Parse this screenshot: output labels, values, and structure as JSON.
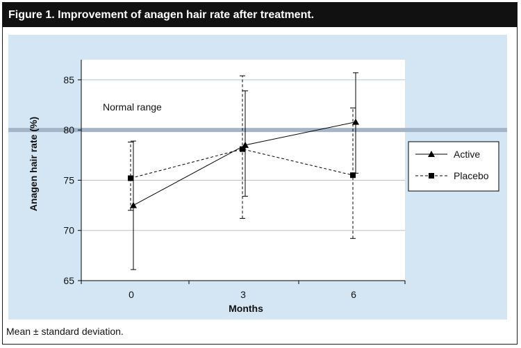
{
  "header": {
    "title": "Figure 1. Improvement of anagen hair rate after treatment."
  },
  "footnote": "Mean ± standard deviation.",
  "colors": {
    "panel": "#d4e6f4",
    "normal_band": "#a4b5c9",
    "gridline": "#b0c4d8"
  },
  "chart_data": {
    "type": "line",
    "xlabel": "Months",
    "ylabel": "Anagen hair rate (%)",
    "categories": [
      "0",
      "3",
      "6"
    ],
    "ylim": [
      65,
      87
    ],
    "yticks": [
      65,
      70,
      75,
      80,
      85
    ],
    "grid": true,
    "legend_position": "right",
    "annotations": [
      {
        "text": "Normal range",
        "y": 80
      }
    ],
    "series": [
      {
        "name": "Active",
        "marker": "triangle",
        "linestyle": "solid",
        "values": [
          72.5,
          78.5,
          80.8
        ],
        "error_low": [
          66.1,
          73.4,
          75.7
        ],
        "error_high": [
          78.9,
          83.9,
          85.7
        ]
      },
      {
        "name": "Placebo",
        "marker": "square",
        "linestyle": "dashed",
        "values": [
          75.2,
          78.1,
          75.5
        ],
        "error_low": [
          72.0,
          71.2,
          69.2
        ],
        "error_high": [
          78.8,
          85.4,
          82.2
        ]
      }
    ]
  }
}
